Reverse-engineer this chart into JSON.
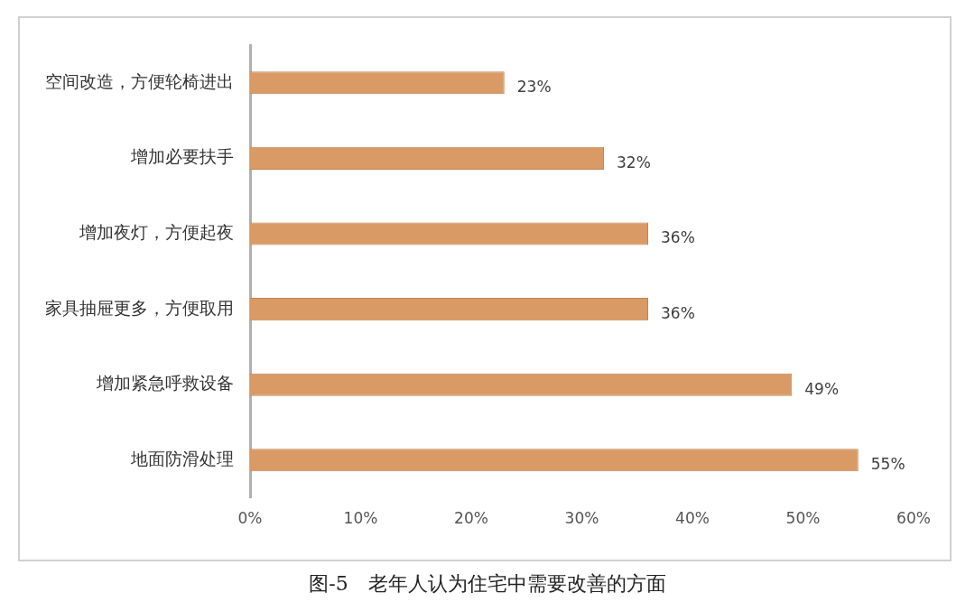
{
  "chart_data": {
    "type": "bar",
    "orientation": "horizontal",
    "title": "图-5　老年人认为住宅中需要改善的方面",
    "categories": [
      "空间改造，方便轮椅进出",
      "增加必要扶手",
      "增加夜灯，方便起夜",
      "家具抽屉更多，方便取用",
      "增加紧急呼救设备",
      "地面防滑处理"
    ],
    "values": [
      23,
      32,
      36,
      36,
      49,
      55
    ],
    "value_labels": [
      "23%",
      "32%",
      "36%",
      "36%",
      "49%",
      "55%"
    ],
    "color": "#d99a66",
    "xlim": [
      0,
      60
    ],
    "xticks": [
      {
        "value": 0,
        "label": "0%"
      },
      {
        "value": 10,
        "label": "10%"
      },
      {
        "value": 20,
        "label": "20%"
      },
      {
        "value": 30,
        "label": "30%"
      },
      {
        "value": 40,
        "label": "40%"
      },
      {
        "value": 50,
        "label": "50%"
      },
      {
        "value": 60,
        "label": "60%"
      }
    ],
    "grid": false,
    "legend": false
  }
}
